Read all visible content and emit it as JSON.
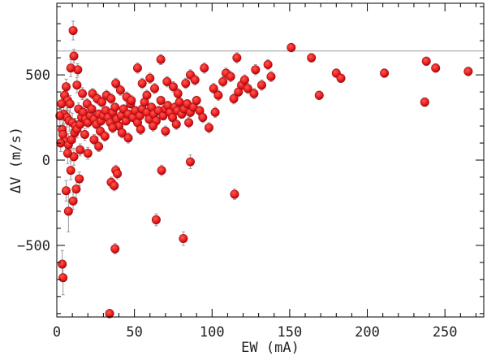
{
  "chart_data": {
    "type": "scatter",
    "xlabel": "EW (mA)",
    "ylabel": "ΔV (m/s)",
    "xlim": [
      0,
      275
    ],
    "ylim": [
      -920,
      920
    ],
    "xticks": [
      0,
      50,
      100,
      150,
      200,
      250
    ],
    "yticks": [
      -500,
      0,
      500
    ],
    "xtick_labels": [
      "0",
      "50",
      "100",
      "150",
      "200",
      "250"
    ],
    "ytick_labels": [
      "−500",
      "0",
      "500"
    ],
    "reference_line_y": 640,
    "grid": false,
    "colors": {
      "marker": "#e8161b",
      "marker_dark": "#9a0d10",
      "errorbar": "#9a9a9a",
      "reference_line": "#9c9c9c",
      "axis": "#000000"
    },
    "points": [
      [
        10.5,
        760,
        55
      ],
      [
        11,
        610,
        40
      ],
      [
        13.5,
        530,
        35
      ],
      [
        9,
        540,
        50
      ],
      [
        6,
        430,
        45
      ],
      [
        5,
        380,
        60
      ],
      [
        7,
        350,
        60
      ],
      [
        8.5,
        330,
        50
      ],
      [
        4.5,
        270,
        55
      ],
      [
        6.5,
        250,
        55
      ],
      [
        8,
        230,
        60
      ],
      [
        10,
        220,
        55
      ],
      [
        12,
        200,
        45
      ],
      [
        3.5,
        180,
        55
      ],
      [
        4,
        150,
        60
      ],
      [
        5.5,
        110,
        60
      ],
      [
        2.5,
        100,
        50
      ],
      [
        7.5,
        90,
        65
      ],
      [
        9.5,
        120,
        60
      ],
      [
        11.5,
        160,
        55
      ],
      [
        13,
        180,
        50
      ],
      [
        15,
        210,
        40
      ],
      [
        16,
        250,
        35
      ],
      [
        14,
        300,
        35
      ],
      [
        17,
        280,
        30
      ],
      [
        18.5,
        240,
        30
      ],
      [
        20,
        220,
        30
      ],
      [
        21.5,
        260,
        30
      ],
      [
        19.5,
        330,
        30
      ],
      [
        22.5,
        300,
        25
      ],
      [
        24,
        240,
        25
      ],
      [
        25.5,
        210,
        25
      ],
      [
        27,
        270,
        25
      ],
      [
        28.5,
        230,
        25
      ],
      [
        30,
        260,
        25
      ],
      [
        31.5,
        290,
        25
      ],
      [
        33,
        250,
        25
      ],
      [
        34.5,
        220,
        25
      ],
      [
        36,
        280,
        25
      ],
      [
        37.5,
        310,
        25
      ],
      [
        38.5,
        240,
        25
      ],
      [
        40,
        200,
        25
      ],
      [
        41.5,
        260,
        25
      ],
      [
        43,
        300,
        25
      ],
      [
        44.5,
        230,
        25
      ],
      [
        46,
        270,
        25
      ],
      [
        47.5,
        330,
        25
      ],
      [
        49,
        250,
        25
      ],
      [
        50.5,
        290,
        25
      ],
      [
        52,
        220,
        25
      ],
      [
        53.5,
        260,
        25
      ],
      [
        55,
        300,
        25
      ],
      [
        56.5,
        340,
        25
      ],
      [
        58,
        280,
        25
      ],
      [
        59.5,
        240,
        25
      ],
      [
        61,
        310,
        25
      ],
      [
        62.5,
        270,
        25
      ],
      [
        64,
        230,
        25
      ],
      [
        65.5,
        290,
        25
      ],
      [
        67,
        350,
        25
      ],
      [
        68.5,
        260,
        25
      ],
      [
        70,
        300,
        25
      ],
      [
        71.5,
        320,
        25
      ],
      [
        73,
        280,
        25
      ],
      [
        74.5,
        250,
        25
      ],
      [
        76,
        310,
        25
      ],
      [
        77.5,
        290,
        25
      ],
      [
        79,
        340,
        25
      ],
      [
        80.5,
        270,
        25
      ],
      [
        82,
        300,
        25
      ],
      [
        84,
        330,
        25
      ],
      [
        86,
        280,
        25
      ],
      [
        88,
        310,
        25
      ],
      [
        90,
        350,
        25
      ],
      [
        92,
        290,
        25
      ],
      [
        23,
        390,
        30
      ],
      [
        26,
        360,
        30
      ],
      [
        29,
        340,
        30
      ],
      [
        32,
        380,
        30
      ],
      [
        35,
        360,
        30
      ],
      [
        38,
        450,
        30
      ],
      [
        41,
        410,
        30
      ],
      [
        45,
        370,
        30
      ],
      [
        48,
        350,
        30
      ],
      [
        52,
        540,
        30
      ],
      [
        55,
        450,
        30
      ],
      [
        58,
        380,
        30
      ],
      [
        60,
        480,
        30
      ],
      [
        63,
        420,
        30
      ],
      [
        67,
        590,
        30
      ],
      [
        71,
        460,
        30
      ],
      [
        75,
        430,
        30
      ],
      [
        78,
        390,
        30
      ],
      [
        83,
        450,
        30
      ],
      [
        86,
        500,
        30
      ],
      [
        89,
        470,
        30
      ],
      [
        95,
        540,
        30
      ],
      [
        101,
        420,
        30
      ],
      [
        104,
        380,
        30
      ],
      [
        107,
        460,
        30
      ],
      [
        109,
        510,
        30
      ],
      [
        112,
        490,
        30
      ],
      [
        114,
        360,
        30
      ],
      [
        116,
        600,
        30
      ],
      [
        117,
        400,
        30
      ],
      [
        119,
        440,
        30
      ],
      [
        121,
        470,
        30
      ],
      [
        123,
        420,
        30
      ],
      [
        127,
        390,
        30
      ],
      [
        128,
        530,
        30
      ],
      [
        132,
        440,
        30
      ],
      [
        136,
        560,
        30
      ],
      [
        138,
        490,
        30
      ],
      [
        151,
        660,
        25
      ],
      [
        164,
        600,
        25
      ],
      [
        169,
        380,
        25
      ],
      [
        180,
        510,
        25
      ],
      [
        183,
        480,
        25
      ],
      [
        211,
        510,
        25
      ],
      [
        238,
        580,
        25
      ],
      [
        244,
        540,
        25
      ],
      [
        237,
        340,
        25
      ],
      [
        265,
        520,
        25
      ],
      [
        18,
        150,
        35
      ],
      [
        24,
        120,
        30
      ],
      [
        28,
        170,
        30
      ],
      [
        31,
        140,
        30
      ],
      [
        36,
        190,
        30
      ],
      [
        42,
        160,
        30
      ],
      [
        46,
        130,
        30
      ],
      [
        54,
        180,
        30
      ],
      [
        62,
        200,
        30
      ],
      [
        70,
        170,
        30
      ],
      [
        77,
        210,
        30
      ],
      [
        85,
        220,
        30
      ],
      [
        94,
        250,
        30
      ],
      [
        98,
        190,
        30
      ],
      [
        102,
        280,
        30
      ],
      [
        15,
        60,
        35
      ],
      [
        20,
        40,
        35
      ],
      [
        27,
        80,
        30
      ],
      [
        11,
        20,
        50
      ],
      [
        7,
        40,
        60
      ],
      [
        9,
        -60,
        55
      ],
      [
        6,
        -180,
        60
      ],
      [
        12.5,
        -170,
        55
      ],
      [
        10.5,
        -240,
        50
      ],
      [
        7.5,
        -300,
        120
      ],
      [
        14.5,
        -110,
        40
      ],
      [
        35,
        -130,
        30
      ],
      [
        38,
        -60,
        30
      ],
      [
        39,
        -80,
        30
      ],
      [
        37,
        -150,
        30
      ],
      [
        67.5,
        -60,
        30
      ],
      [
        86,
        -10,
        40
      ],
      [
        114.5,
        -200,
        30
      ],
      [
        64,
        -350,
        35
      ],
      [
        81.5,
        -460,
        40
      ],
      [
        37.5,
        -520,
        30
      ],
      [
        3.5,
        -610,
        80
      ],
      [
        4,
        -690,
        100
      ],
      [
        34,
        -900,
        25
      ],
      [
        2,
        260,
        60
      ],
      [
        3,
        330,
        60
      ],
      [
        13,
        440,
        45
      ],
      [
        16.5,
        390,
        35
      ]
    ]
  }
}
